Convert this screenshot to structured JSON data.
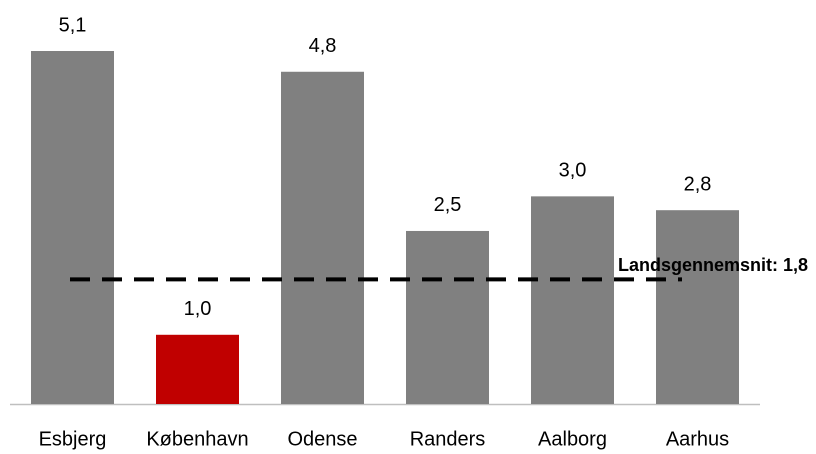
{
  "chart_data": {
    "type": "bar",
    "categories": [
      "Esbjerg",
      "København",
      "Odense",
      "Randers",
      "Aalborg",
      "Aarhus"
    ],
    "values": [
      5.1,
      1.0,
      4.8,
      2.5,
      3.0,
      2.8
    ],
    "value_labels": [
      "5,1",
      "1,0",
      "4,8",
      "2,5",
      "3,0",
      "2,8"
    ],
    "colors": [
      "#808080",
      "#c00000",
      "#808080",
      "#808080",
      "#808080",
      "#808080"
    ],
    "reference_line": {
      "value": 1.8,
      "label": "Landsgennemsnit: 1,8",
      "color": "#000000",
      "style": "dashed"
    }
  }
}
